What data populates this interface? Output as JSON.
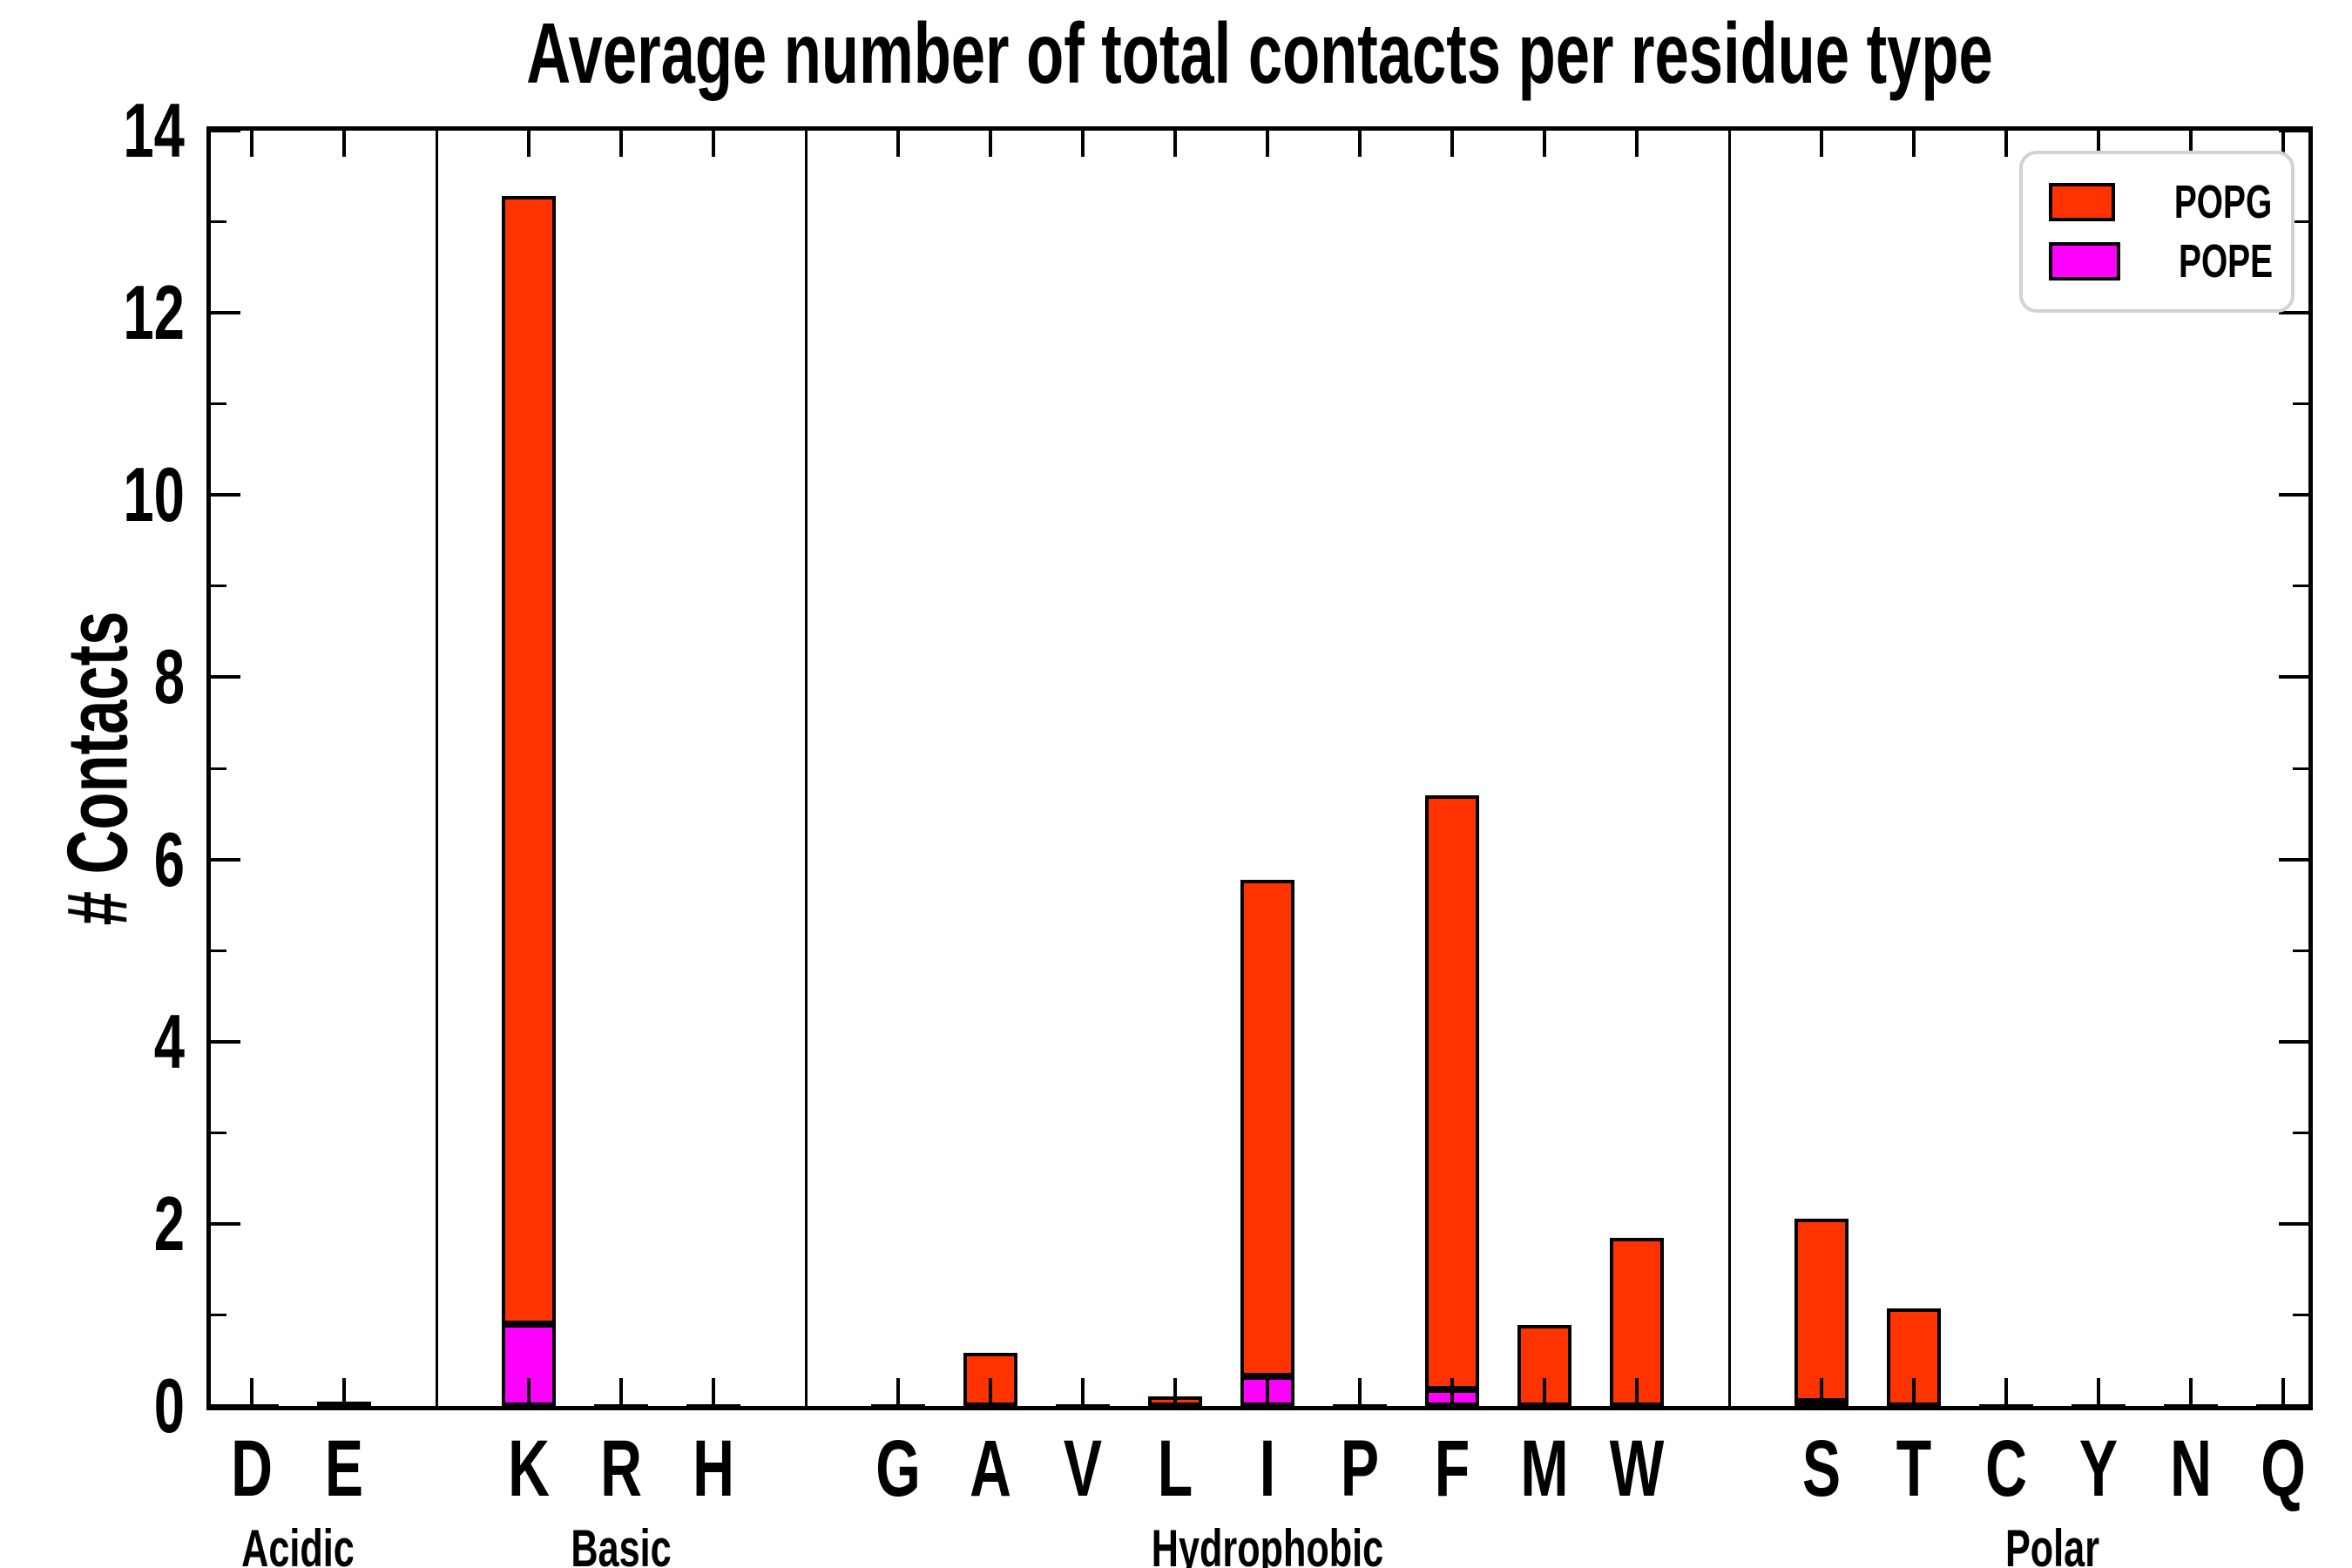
{
  "figure": {
    "title": "Average number of total contacts per residue type",
    "ylabel": "# Contacts",
    "background": "#ffffff"
  },
  "legend": {
    "position": "upper-right",
    "items": [
      {
        "label": "POPG",
        "color": "#ff3300"
      },
      {
        "label": "POPE",
        "color": "#ff00ff"
      }
    ]
  },
  "chart_data": {
    "type": "bar",
    "stacked": true,
    "title": "Average number of total contacts per residue type",
    "xlabel": "",
    "ylabel": "# Contacts",
    "ylim": [
      0,
      14
    ],
    "ytick_major": [
      0,
      2,
      4,
      6,
      8,
      10,
      12,
      14
    ],
    "ytick_minor": [
      1,
      3,
      5,
      7,
      9,
      11,
      13
    ],
    "grid": false,
    "legend_position": "upper-right",
    "series_note": "POPE is the bottom (magenta) stack segment, POPG is the top (red) segment",
    "colors": {
      "POPG": "#ff3300",
      "POPE": "#ff00ff"
    },
    "groups": [
      {
        "label": "Acidic",
        "residues": [
          {
            "label": "D",
            "POPG": 0.02,
            "POPE": 0.0
          },
          {
            "label": "E",
            "POPG": 0.05,
            "POPE": 0.0
          }
        ]
      },
      {
        "label": "Basic",
        "residues": [
          {
            "label": "K",
            "POPG": 12.3,
            "POPE": 0.89
          },
          {
            "label": "R",
            "POPG": 0.01,
            "POPE": 0.0
          },
          {
            "label": "H",
            "POPG": 0.02,
            "POPE": 0.0
          }
        ]
      },
      {
        "label": "Hydrophobic",
        "residues": [
          {
            "label": "G",
            "POPG": 0.02,
            "POPE": 0.0
          },
          {
            "label": "A",
            "POPG": 0.58,
            "POPE": 0.0
          },
          {
            "label": "V",
            "POPG": 0.01,
            "POPE": 0.0
          },
          {
            "label": "L",
            "POPG": 0.1,
            "POPE": 0.0
          },
          {
            "label": "I",
            "POPG": 5.41,
            "POPE": 0.32
          },
          {
            "label": "P",
            "POPG": 0.01,
            "POPE": 0.0
          },
          {
            "label": "F",
            "POPG": 6.48,
            "POPE": 0.18
          },
          {
            "label": "M",
            "POPG": 0.88,
            "POPE": 0.0
          },
          {
            "label": "W",
            "POPG": 1.83,
            "POPE": 0.0
          }
        ]
      },
      {
        "label": "Polar",
        "residues": [
          {
            "label": "S",
            "POPG": 1.99,
            "POPE": 0.05
          },
          {
            "label": "T",
            "POPG": 1.06,
            "POPE": 0.0
          },
          {
            "label": "C",
            "POPG": 0.02,
            "POPE": 0.0
          },
          {
            "label": "Y",
            "POPG": 0.01,
            "POPE": 0.0
          },
          {
            "label": "N",
            "POPG": 0.02,
            "POPE": 0.0
          },
          {
            "label": "Q",
            "POPG": 0.02,
            "POPE": 0.0
          }
        ]
      }
    ]
  }
}
